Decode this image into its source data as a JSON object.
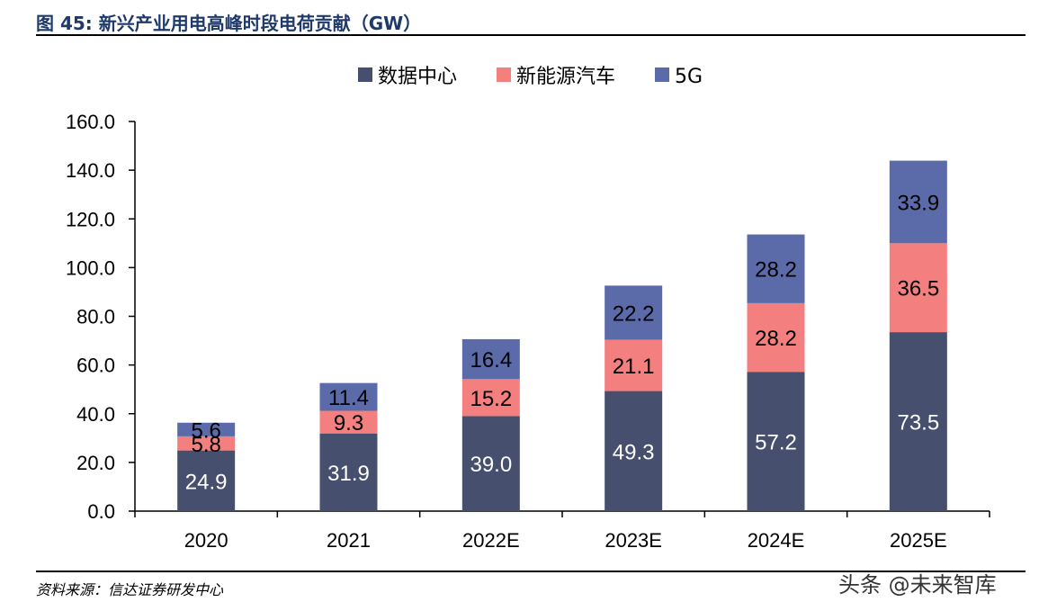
{
  "header": {
    "title": "图 45:  新兴产业用电高峰时段电荷贡献（GW）"
  },
  "footer": {
    "source": "资料来源：信达证券研发中心",
    "watermark": "头条 @未来智库"
  },
  "colors": {
    "data_center": "#46506e",
    "nev": "#f47f7f",
    "five_g": "#5b6aa8",
    "axis": "#000000"
  },
  "chart_data": {
    "type": "bar",
    "stacked": true,
    "title": "",
    "xlabel": "",
    "ylabel": "",
    "ylim": [
      0,
      160
    ],
    "yticks": [
      "0.0",
      "20.0",
      "40.0",
      "60.0",
      "80.0",
      "100.0",
      "120.0",
      "140.0",
      "160.0"
    ],
    "grid": false,
    "legend_position": "top-center",
    "categories": [
      "2020",
      "2021",
      "2022E",
      "2023E",
      "2024E",
      "2025E"
    ],
    "series": [
      {
        "name": "数据中心",
        "color": "#46506e",
        "label_color": "#ffffff",
        "values": [
          24.9,
          31.9,
          39.0,
          49.3,
          57.2,
          73.5
        ],
        "labels": [
          "24.9",
          "31.9",
          "39.0",
          "49.3",
          "57.2",
          "73.5"
        ]
      },
      {
        "name": "新能源汽车",
        "color": "#f47f7f",
        "label_color": "#000000",
        "values": [
          5.8,
          9.3,
          15.2,
          21.1,
          28.2,
          36.5
        ],
        "labels": [
          "5.8",
          "9.3",
          "15.2",
          "21.1",
          "28.2",
          "36.5"
        ]
      },
      {
        "name": "5G",
        "color": "#5b6aa8",
        "label_color": "#000000",
        "values": [
          5.6,
          11.4,
          16.4,
          22.2,
          28.2,
          33.9
        ],
        "labels": [
          "5.6",
          "11.4",
          "16.4",
          "22.2",
          "28.2",
          "33.9"
        ]
      }
    ]
  }
}
